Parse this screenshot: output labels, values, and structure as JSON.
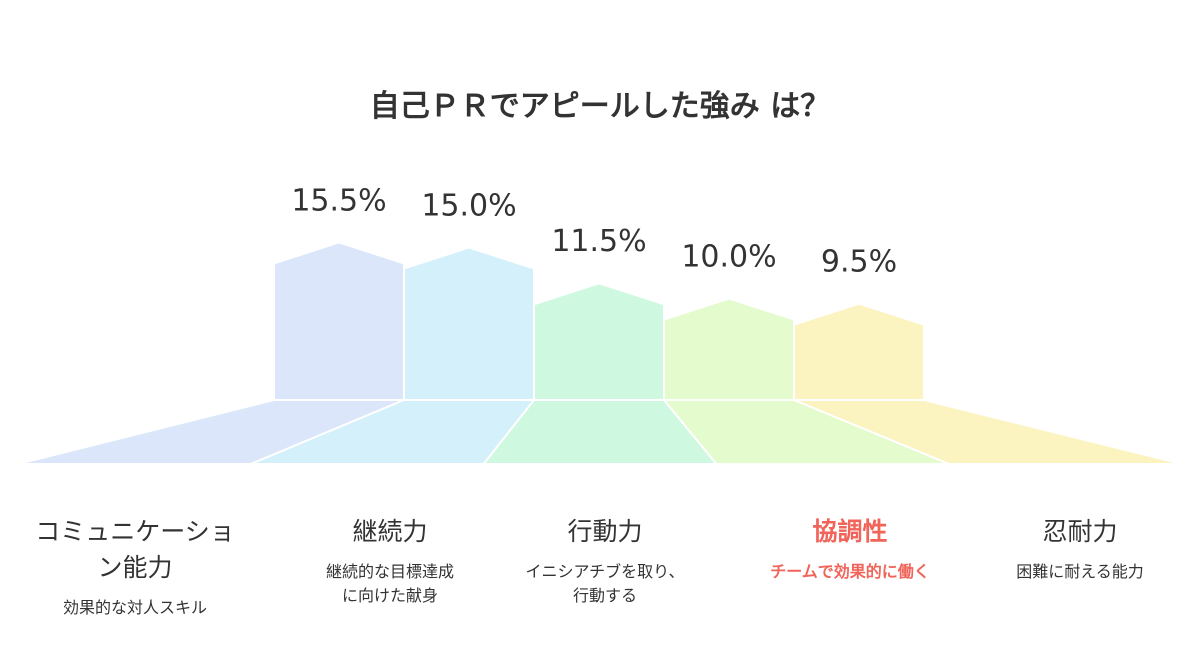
{
  "chart_data": {
    "type": "bar",
    "title": "自己ＰＲでアピールした強み は？",
    "categories": [
      "コミュニケーション能力",
      "継続力",
      "行動力",
      "協調性",
      "忍耐力"
    ],
    "descriptions": [
      "効果的な対人スキル",
      "継続的な目標達成に向けた献身",
      "イニシアチブを取り、行動する",
      "チームで効果的に働く",
      "困難に耐える能力"
    ],
    "values": [
      15.5,
      15.0,
      11.5,
      10.0,
      9.5
    ],
    "value_labels": [
      "15.5%",
      "15.0%",
      "11.5%",
      "10.0%",
      "9.5%"
    ],
    "colors": [
      "#dbe6fb",
      "#d3f0fb",
      "#cef8df",
      "#e4fbcd",
      "#fbf3c0"
    ],
    "highlight_color": "#f0645a",
    "highlight_index": 3
  },
  "labels": {
    "cat0_line1": "コミュニケーショ",
    "cat0_line2": "ン能力",
    "cat1_desc_line1": "継続的な目標達成",
    "cat1_desc_line2": "に向けた献身",
    "cat2_desc_line1": "イニシアチブを取り、",
    "cat2_desc_line2": "行動する"
  }
}
